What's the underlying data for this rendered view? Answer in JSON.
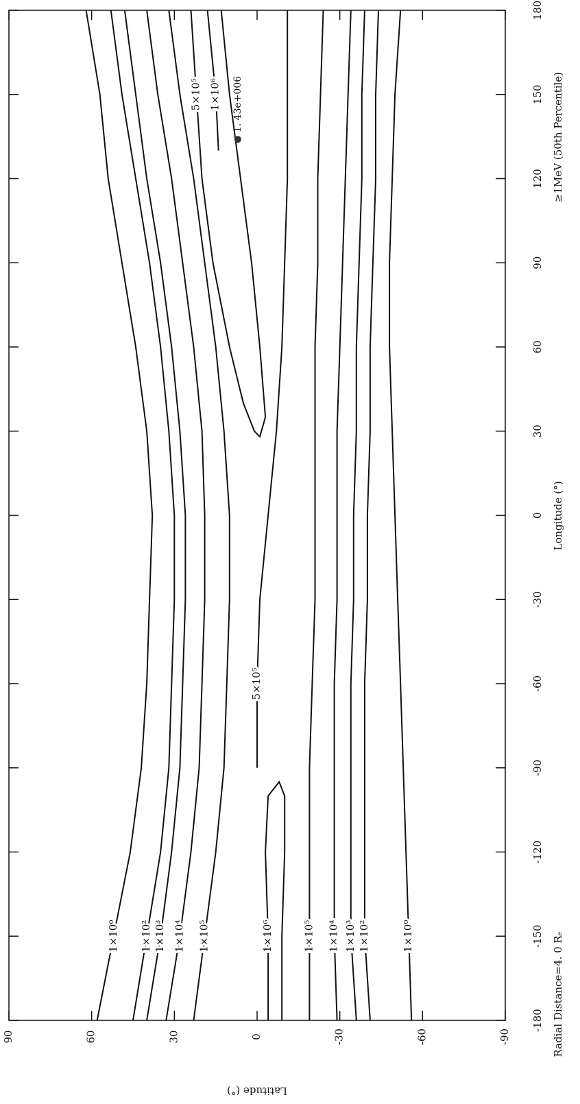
{
  "chart_data": {
    "type": "contour",
    "x_label": "Longitude (°)",
    "y_label": "Latitude (°)",
    "annotation_left": "Radial Distance=4. 0 Rₑ",
    "annotation_right": "≥1MeV (50th Percentile)",
    "xlim": [
      -180,
      180
    ],
    "ylim": [
      -90,
      90
    ],
    "xticks": [
      -180,
      -150,
      -120,
      -90,
      -60,
      -30,
      0,
      30,
      60,
      90,
      120,
      150,
      180
    ],
    "yticks": [
      -90,
      -60,
      -30,
      0,
      30,
      60,
      90
    ],
    "color": "#111111",
    "series": [
      {
        "name": "1×10⁰",
        "x": [
          -180,
          -150,
          -120,
          -90,
          -60,
          -30,
          0,
          30,
          60,
          90,
          120,
          150,
          180
        ],
        "values": [
          58,
          52,
          46,
          42,
          40,
          39,
          38,
          40,
          44,
          49,
          54,
          57,
          62
        ]
      },
      {
        "name": "1×10²",
        "x": [
          -180,
          -150,
          -120,
          -90,
          -60,
          -30,
          0,
          30,
          60,
          90,
          120,
          150,
          180
        ],
        "values": [
          45,
          40,
          35,
          32,
          31,
          30,
          30,
          32,
          35,
          39,
          44,
          49,
          53
        ]
      },
      {
        "name": "1×10³",
        "x": [
          -180,
          -150,
          -120,
          -90,
          -60,
          -30,
          0,
          30,
          60,
          90,
          120,
          150,
          180
        ],
        "values": [
          40,
          35,
          31,
          28,
          27,
          26,
          26,
          28,
          31,
          35,
          40,
          44,
          48
        ]
      },
      {
        "name": "1×10⁴",
        "x": [
          -180,
          -150,
          -120,
          -90,
          -60,
          -30,
          0,
          30,
          60,
          90,
          120,
          150,
          180
        ],
        "values": [
          33,
          28,
          24,
          21,
          20,
          19,
          19,
          20,
          23,
          27,
          31,
          36,
          40
        ]
      },
      {
        "name": "1×10⁵",
        "x": [
          -180,
          -150,
          -120,
          -90,
          -60,
          -30,
          0,
          30,
          60,
          90,
          120,
          150,
          180
        ],
        "values": [
          23,
          19,
          15,
          12,
          11,
          10,
          10,
          12,
          15,
          19,
          23,
          28,
          32
        ]
      },
      {
        "name": "5×10⁵",
        "x": [
          180,
          150,
          120,
          90,
          60,
          40,
          30,
          28,
          35,
          60,
          90,
          120,
          150,
          180
        ],
        "values": [
          24,
          22,
          20,
          16,
          10,
          5,
          1,
          -1,
          -3,
          -1,
          2,
          6,
          10,
          13
        ]
      },
      {
        "name": "1×10⁶",
        "x": [
          180,
          150,
          130
        ],
        "values": [
          18,
          15,
          14
        ]
      },
      {
        "name": "1×10⁶",
        "x": [
          -180,
          -150,
          -120,
          -100,
          -95,
          -100,
          -120,
          -150,
          -180
        ],
        "values": [
          -4,
          -4,
          -3,
          -4,
          -8,
          -10,
          -10,
          -9,
          -9
        ]
      },
      {
        "name": "5×10⁵",
        "x": [
          -90,
          -60,
          -30,
          0,
          30,
          60,
          90,
          120,
          150,
          180
        ],
        "values": [
          0,
          0,
          -1,
          -4,
          -7,
          -9,
          -10,
          -11,
          -11,
          -11
        ]
      },
      {
        "name": "1×10⁵",
        "x": [
          -180,
          -150,
          -120,
          -90,
          -60,
          -30,
          0,
          30,
          60,
          90,
          120,
          150,
          180
        ],
        "values": [
          -19,
          -19,
          -19,
          -19,
          -20,
          -21,
          -21,
          -21,
          -21,
          -22,
          -22,
          -23,
          -24
        ]
      },
      {
        "name": "1×10⁴",
        "x": [
          -180,
          -150,
          -120,
          -90,
          -60,
          -30,
          0,
          30,
          60,
          90,
          120,
          150,
          180
        ],
        "values": [
          -29,
          -28,
          -28,
          -28,
          -28,
          -29,
          -29,
          -29,
          -30,
          -31,
          -32,
          -33,
          -34
        ]
      },
      {
        "name": "1×10³",
        "x": [
          -180,
          -150,
          -120,
          -90,
          -60,
          -30,
          0,
          30,
          60,
          90,
          120,
          150,
          180
        ],
        "values": [
          -36,
          -34,
          -34,
          -34,
          -34,
          -35,
          -35,
          -36,
          -36,
          -37,
          -38,
          -38,
          -39
        ]
      },
      {
        "name": "1×10²",
        "x": [
          -180,
          -150,
          -120,
          -90,
          -60,
          -30,
          0,
          30,
          60,
          90,
          120,
          150,
          180
        ],
        "values": [
          -41,
          -39,
          -39,
          -39,
          -39,
          -40,
          -40,
          -41,
          -41,
          -42,
          -43,
          -43,
          -44
        ]
      },
      {
        "name": "1×10⁰",
        "x": [
          -180,
          -150,
          -120,
          -90,
          -60,
          -30,
          0,
          30,
          60,
          90,
          120,
          150,
          180
        ],
        "values": [
          -56,
          -55,
          -54,
          -53,
          -52,
          -51,
          -50,
          -49,
          -48,
          -48,
          -49,
          -50,
          -52
        ]
      }
    ],
    "point": {
      "x": 134,
      "y": 7,
      "label": "1. 43e+006"
    }
  }
}
